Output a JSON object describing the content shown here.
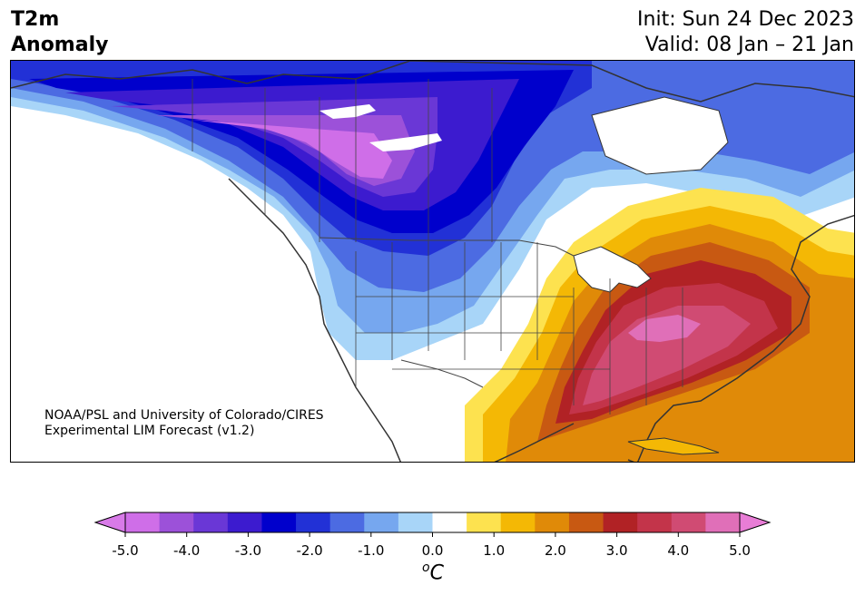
{
  "header": {
    "title_line1": "T2m",
    "title_line2": "Anomaly",
    "init": "Init: Sun 24 Dec 2023",
    "valid": "Valid: 08 Jan – 21 Jan"
  },
  "credit": {
    "line1": "NOAA/PSL and University of Colorado/CIRES",
    "line2": "Experimental LIM Forecast (v1.2)"
  },
  "colorbar": {
    "unit_super": "o",
    "unit_main": "C",
    "tick_labels": [
      "-5.0",
      "-4.0",
      "-3.0",
      "-2.0",
      "-1.0",
      "0.0",
      "1.0",
      "2.0",
      "3.0",
      "4.0",
      "5.0"
    ],
    "colors": [
      "#cf6ee8",
      "#9c51d9",
      "#6a37d6",
      "#3c1bcf",
      "#0000cc",
      "#2231d6",
      "#4c6be2",
      "#76a7ef",
      "#a8d5f8",
      "#ffffff",
      "#fde24f",
      "#f4b805",
      "#e08a08",
      "#c85912",
      "#b12225",
      "#c3344a",
      "#d04b73",
      "#e06fb8"
    ],
    "min_color": "#d87ae8",
    "max_color": "#e87dd6"
  }
}
